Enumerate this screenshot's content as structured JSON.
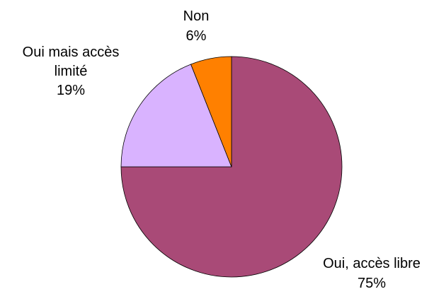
{
  "chart_data": {
    "type": "pie",
    "slices": [
      {
        "label": "Oui, accès libre",
        "value": 75,
        "value_text": "75%",
        "color": "#A94A77"
      },
      {
        "label": "Oui mais accès limité",
        "value": 19,
        "value_text": "19%",
        "color": "#D9B3FF"
      },
      {
        "label": "Non",
        "value": 6,
        "value_text": "6%",
        "color": "#FF8000"
      }
    ],
    "start": "12 o'clock",
    "direction": "clockwise"
  }
}
